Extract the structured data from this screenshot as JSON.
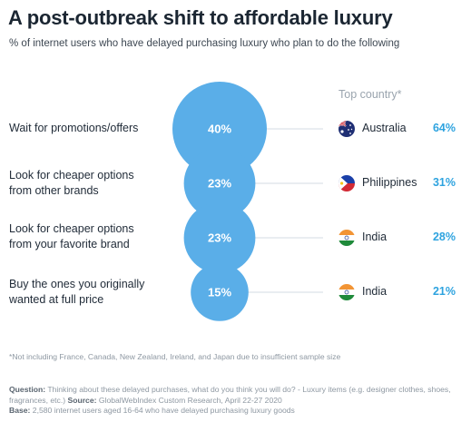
{
  "title": "A post-outbreak shift to affordable luxury",
  "subtitle": "% of internet users who have delayed purchasing luxury who plan to do the following",
  "top_country_header": "Top country*",
  "colors": {
    "bubble": "#5aaee8",
    "bubble_text": "#ffffff",
    "percent": "#2ea3df",
    "connector": "#d3dbe3"
  },
  "chart_data": {
    "type": "bubble",
    "title": "A post-outbreak shift to affordable luxury",
    "subtitle": "% of internet users who have delayed purchasing luxury who plan to do the following",
    "unit": "%",
    "categories": [
      "Wait for promotions/offers",
      "Look for cheaper options from other brands",
      "Look for cheaper options from your favorite brand",
      "Buy the ones you originally wanted at full price"
    ],
    "series": [
      {
        "values": [
          40,
          23,
          23,
          15
        ]
      }
    ],
    "top_country": [
      {
        "country": "Australia",
        "value": 64,
        "flag_icon": "australia-flag-icon"
      },
      {
        "country": "Philippines",
        "value": 31,
        "flag_icon": "philippines-flag-icon"
      },
      {
        "country": "India",
        "value": 28,
        "flag_icon": "india-flag-icon"
      },
      {
        "country": "India",
        "value": 21,
        "flag_icon": "india-flag-icon"
      }
    ]
  },
  "rows": [
    {
      "label_lines": [
        "Wait for promotions/offers"
      ],
      "value_label": "40%",
      "country": "Australia",
      "country_pct": "64%"
    },
    {
      "label_lines": [
        "Look for cheaper options",
        "from other brands"
      ],
      "value_label": "23%",
      "country": "Philippines",
      "country_pct": "31%"
    },
    {
      "label_lines": [
        "Look for cheaper options",
        "from your favorite brand"
      ],
      "value_label": "23%",
      "country": "India",
      "country_pct": "28%"
    },
    {
      "label_lines": [
        "Buy the ones you originally",
        "wanted at full price"
      ],
      "value_label": "15%",
      "country": "India",
      "country_pct": "21%"
    }
  ],
  "footnote": "*Not including France, Canada, New Zealand, Ireland, and Japan due to insufficient sample size",
  "question_label": "Question:",
  "question_text": "Thinking about these delayed purchases, what do you think you will do? - Luxury items (e.g. designer clothes, shoes, fragrances, etc.)",
  "source_label": "Source:",
  "source_text": "GlobalWebIndex Custom Research, April 22-27 2020",
  "base_label": "Base:",
  "base_text": "2,580 internet users aged 16-64 who have delayed purchasing luxury goods"
}
